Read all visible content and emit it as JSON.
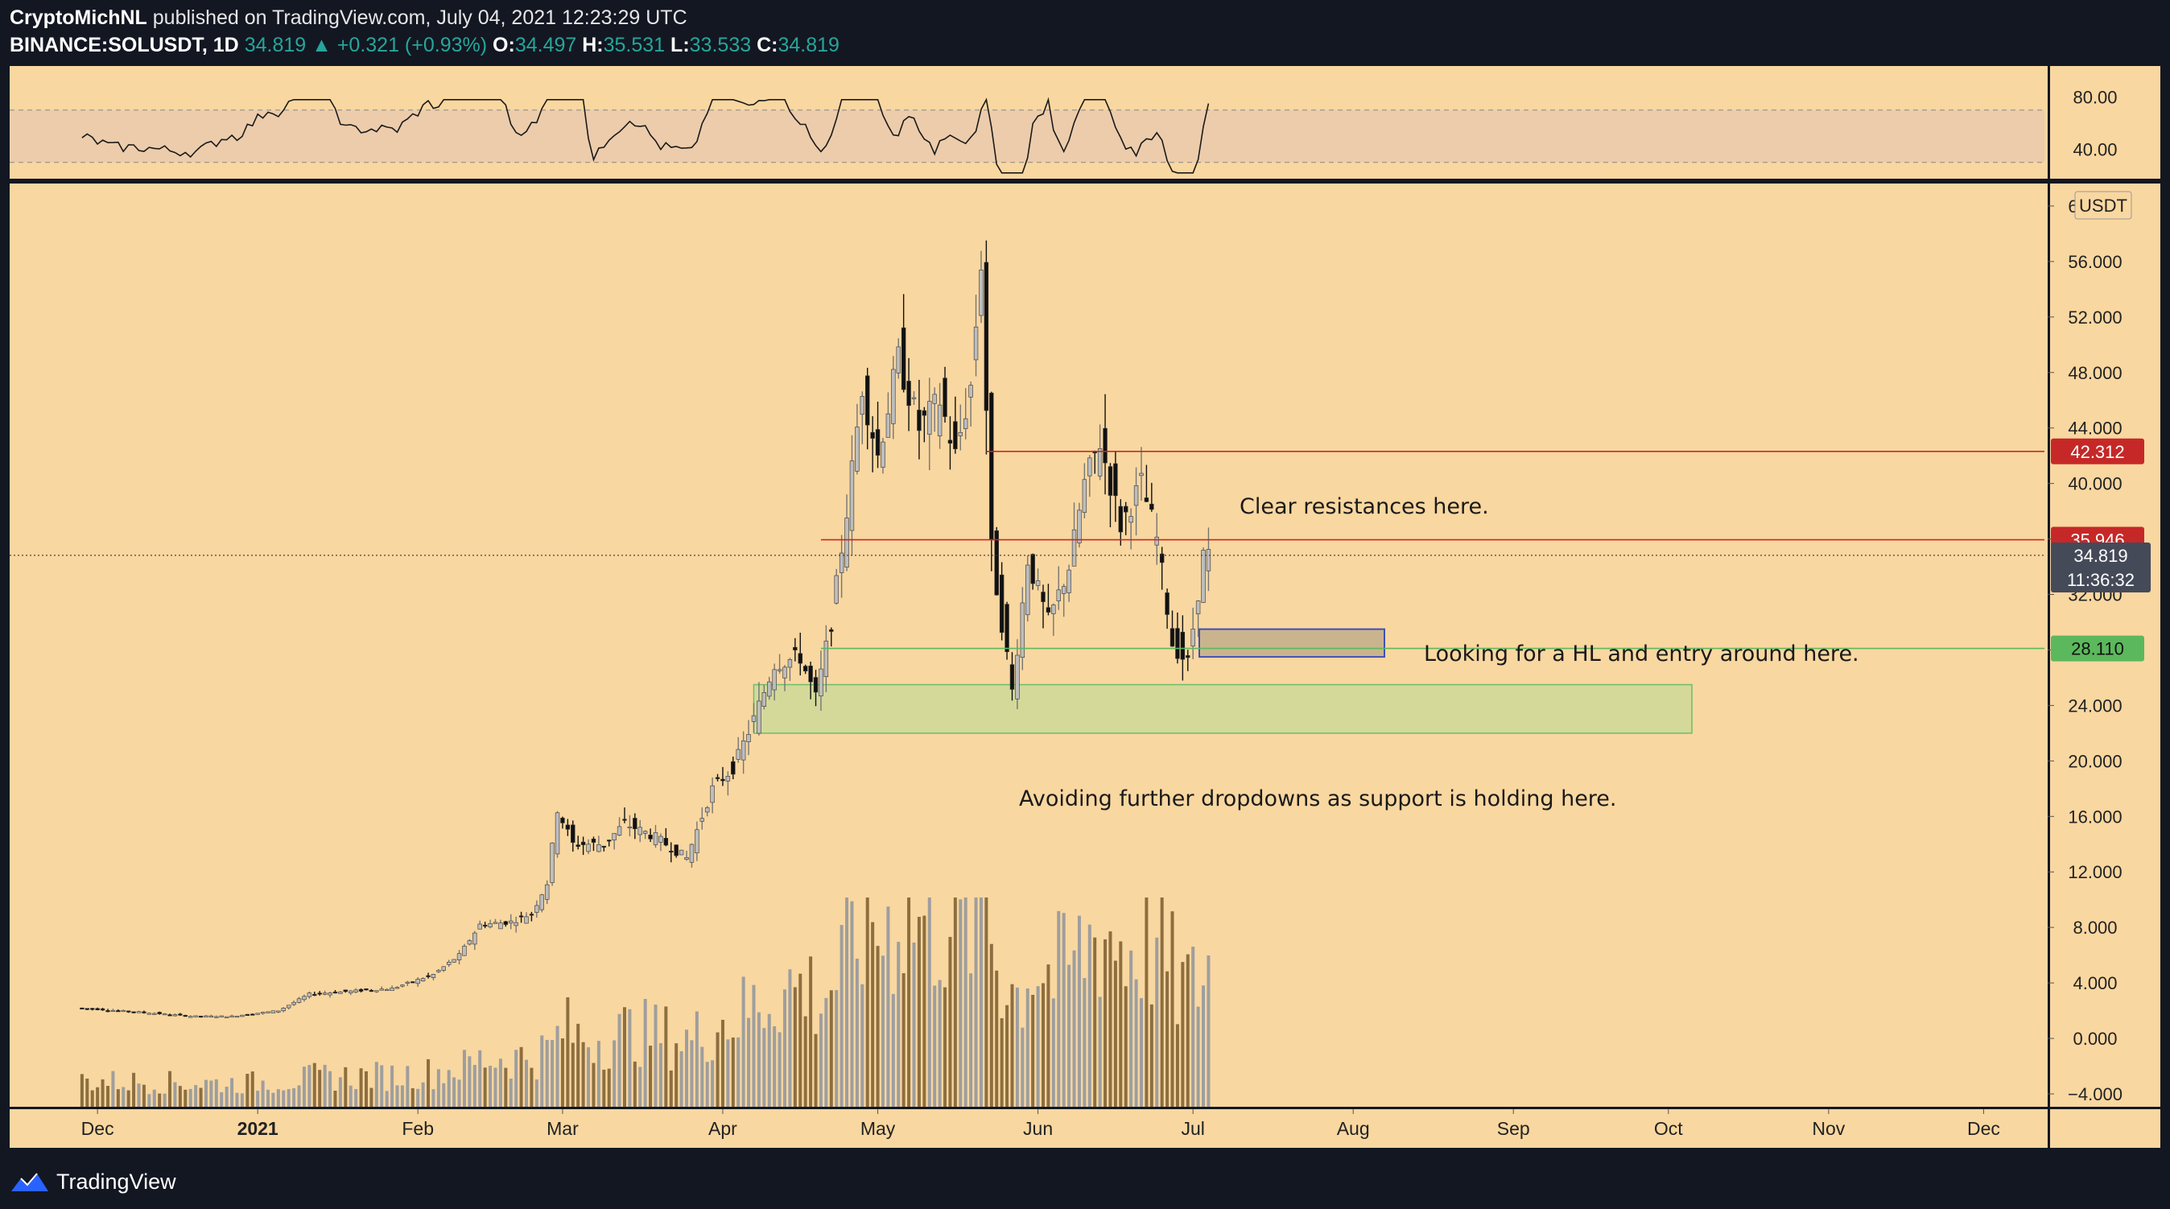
{
  "header": {
    "author": "CryptoMichNL",
    "published": "published on TradingView.com, July 04, 2021 12:23:29 UTC",
    "symbol": "BINANCE:SOLUSDT, 1D",
    "last": "34.819",
    "change": "+0.321 (+0.93%)",
    "o_label": "O:",
    "o": "34.497",
    "h_label": "H:",
    "h": "35.531",
    "l_label": "L:",
    "l": "33.533",
    "c_label": "C:",
    "c": "34.819"
  },
  "footer": {
    "brand": "TradingView"
  },
  "colors": {
    "panel_bg": "#f9d7a0",
    "candle_up": "#bdbdbd",
    "candle_down": "#111111",
    "resistance": "#b22222",
    "support": "#4caf50",
    "entry_box": "#3f51b5",
    "zone_fill": "#d4d99a"
  },
  "chart_data": {
    "type": "candlestick",
    "price_axis": {
      "unit": "USDT",
      "ticks": [
        "60.000",
        "56.000",
        "52.000",
        "48.000",
        "44.000",
        "40.000",
        "36.000",
        "32.000",
        "28.000",
        "24.000",
        "20.000",
        "16.000",
        "12.000",
        "8.000",
        "4.000",
        "0.000",
        "−4.000"
      ],
      "ylim": [
        -4,
        64
      ]
    },
    "time_axis": [
      "Dec",
      "2021",
      "Feb",
      "Mar",
      "Apr",
      "May",
      "Jun",
      "Jul",
      "Aug",
      "Sep",
      "Oct",
      "Nov",
      "Dec"
    ],
    "rsi": {
      "ticks": [
        "80.00",
        "40.00"
      ],
      "band": [
        30,
        70
      ]
    },
    "levels": [
      {
        "name": "resistance-high",
        "value": 42.312,
        "label": "42.312",
        "color": "#c62828"
      },
      {
        "name": "resistance-low",
        "value": 35.946,
        "label": "35.946",
        "color": "#c62828"
      },
      {
        "name": "support",
        "value": 28.11,
        "label": "28.110",
        "color": "#5cb85c"
      }
    ],
    "current": {
      "price": "34.819",
      "countdown": "11:36:32"
    },
    "annotations": [
      "Clear resistances here.",
      "Looking for a HL and entry around here.",
      "Avoiding further dropdowns as support is holding here."
    ],
    "support_zone": [
      22,
      25.5
    ],
    "entry_zone": [
      27.5,
      29.5
    ],
    "price_path": [
      [
        "2020-11-28",
        2.2
      ],
      [
        "2020-12-10",
        1.9
      ],
      [
        "2020-12-20",
        1.6
      ],
      [
        "2020-12-28",
        1.6
      ],
      [
        "2021-01-06",
        2.0
      ],
      [
        "2021-01-12",
        3.2
      ],
      [
        "2021-01-20",
        3.4
      ],
      [
        "2021-01-28",
        3.6
      ],
      [
        "2021-02-05",
        4.6
      ],
      [
        "2021-02-10",
        6.0
      ],
      [
        "2021-02-14",
        8.2
      ],
      [
        "2021-02-20",
        8.4
      ],
      [
        "2021-02-24",
        9.0
      ],
      [
        "2021-02-27",
        11.2
      ],
      [
        "2021-03-01",
        16.5
      ],
      [
        "2021-03-04",
        14.0
      ],
      [
        "2021-03-10",
        14.0
      ],
      [
        "2021-03-14",
        15.5
      ],
      [
        "2021-03-20",
        14.5
      ],
      [
        "2021-03-26",
        13.0
      ],
      [
        "2021-03-31",
        18.0
      ],
      [
        "2021-04-04",
        19.5
      ],
      [
        "2021-04-08",
        23.0
      ],
      [
        "2021-04-12",
        27.0
      ],
      [
        "2021-04-17",
        27.5
      ],
      [
        "2021-04-20",
        24.5
      ],
      [
        "2021-04-23",
        30.0
      ],
      [
        "2021-04-26",
        38.0
      ],
      [
        "2021-04-29",
        47.0
      ],
      [
        "2021-05-02",
        42.0
      ],
      [
        "2021-05-06",
        49.0
      ],
      [
        "2021-05-10",
        44.0
      ],
      [
        "2021-05-14",
        46.0
      ],
      [
        "2021-05-17",
        42.0
      ],
      [
        "2021-05-20",
        47.0
      ],
      [
        "2021-05-22",
        56.0
      ],
      [
        "2021-05-24",
        35.0
      ],
      [
        "2021-05-26",
        30.0
      ],
      [
        "2021-05-28",
        25.0
      ],
      [
        "2021-05-31",
        34.5
      ],
      [
        "2021-06-04",
        30.0
      ],
      [
        "2021-06-08",
        34.0
      ],
      [
        "2021-06-11",
        40.0
      ],
      [
        "2021-06-14",
        43.0
      ],
      [
        "2021-06-18",
        37.0
      ],
      [
        "2021-06-22",
        40.0
      ],
      [
        "2021-06-25",
        36.0
      ],
      [
        "2021-06-28",
        28.5
      ],
      [
        "2021-07-01",
        27.0
      ],
      [
        "2021-07-04",
        34.8
      ]
    ]
  }
}
